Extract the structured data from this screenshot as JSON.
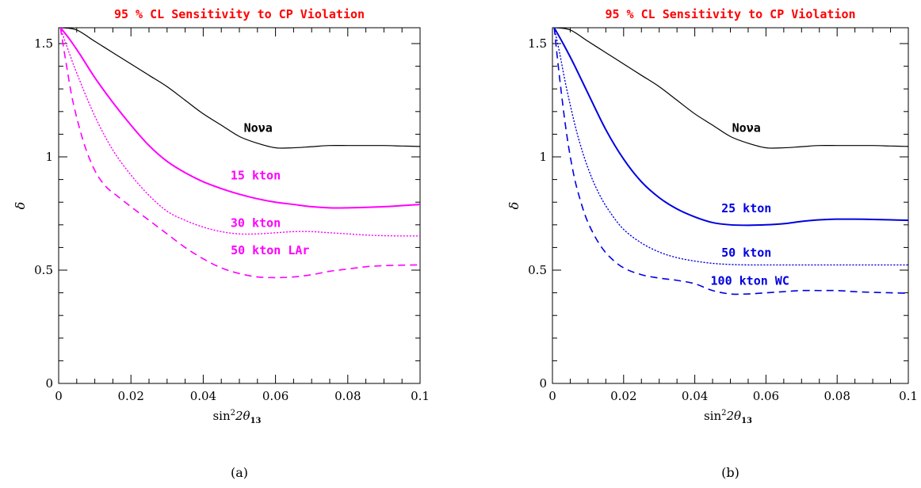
{
  "chart_data": [
    {
      "type": "line",
      "title": "95 % CL Sensitivity to CP Violation",
      "title_color": "#ff0000",
      "xlabel_text": "sin",
      "xlabel_sup": "2",
      "xlabel_mid": "2θ",
      "xlabel_sub": "13",
      "ylabel": "δ",
      "xlim": [
        0,
        0.1
      ],
      "ylim": [
        0,
        1.57
      ],
      "x_ticks": [
        0,
        0.02,
        0.04,
        0.06,
        0.08,
        0.1
      ],
      "x_tick_labels": [
        "0",
        "0.02",
        "0.04",
        "0.06",
        "0.08",
        "0.1"
      ],
      "y_ticks": [
        0,
        0.5,
        1,
        1.5
      ],
      "y_tick_labels": [
        "0",
        "0.5",
        "1",
        "1.5"
      ],
      "panel_label": "(a)",
      "series": [
        {
          "name": "Noνa",
          "color": "#000000",
          "style": "solid",
          "width": 1.2,
          "label_pos": [
            0.0552,
            1.11
          ],
          "x": [
            0.001,
            0.005,
            0.01,
            0.015,
            0.02,
            0.025,
            0.03,
            0.035,
            0.04,
            0.045,
            0.05,
            0.055,
            0.06,
            0.065,
            0.07,
            0.075,
            0.08,
            0.085,
            0.09,
            0.095,
            0.1
          ],
          "y": [
            1.57,
            1.56,
            1.51,
            1.46,
            1.41,
            1.36,
            1.31,
            1.25,
            1.19,
            1.14,
            1.09,
            1.06,
            1.04,
            1.04,
            1.045,
            1.05,
            1.05,
            1.05,
            1.05,
            1.048,
            1.046
          ]
        },
        {
          "name": "15 kton",
          "color": "#ff00ff",
          "style": "solid",
          "width": 2,
          "label_pos": [
            0.0545,
            0.9
          ],
          "x": [
            0.0005,
            0.003,
            0.006,
            0.01,
            0.015,
            0.02,
            0.025,
            0.03,
            0.035,
            0.04,
            0.045,
            0.05,
            0.055,
            0.06,
            0.065,
            0.07,
            0.075,
            0.08,
            0.085,
            0.09,
            0.095,
            0.1
          ],
          "y": [
            1.57,
            1.52,
            1.45,
            1.35,
            1.24,
            1.14,
            1.05,
            0.98,
            0.93,
            0.89,
            0.86,
            0.835,
            0.815,
            0.8,
            0.79,
            0.78,
            0.775,
            0.775,
            0.777,
            0.78,
            0.785,
            0.79
          ]
        },
        {
          "name": "30 kton",
          "color": "#ff00ff",
          "style": "dotted",
          "width": 1.4,
          "label_pos": [
            0.0545,
            0.69
          ],
          "x": [
            0.0005,
            0.002,
            0.005,
            0.01,
            0.015,
            0.02,
            0.025,
            0.03,
            0.035,
            0.04,
            0.045,
            0.05,
            0.055,
            0.06,
            0.065,
            0.07,
            0.075,
            0.08,
            0.085,
            0.09,
            0.095,
            0.1
          ],
          "y": [
            1.57,
            1.5,
            1.37,
            1.18,
            1.03,
            0.92,
            0.83,
            0.76,
            0.72,
            0.69,
            0.67,
            0.66,
            0.66,
            0.665,
            0.67,
            0.67,
            0.665,
            0.66,
            0.655,
            0.652,
            0.651,
            0.651
          ]
        },
        {
          "name": "50 kton LAr",
          "color": "#ff00ff",
          "style": "dashed",
          "width": 1.6,
          "label_pos": [
            0.0585,
            0.57
          ],
          "x": [
            0.0005,
            0.002,
            0.004,
            0.007,
            0.01,
            0.013,
            0.016,
            0.02,
            0.025,
            0.03,
            0.035,
            0.04,
            0.045,
            0.05,
            0.055,
            0.06,
            0.065,
            0.07,
            0.075,
            0.08,
            0.085,
            0.09,
            0.095,
            0.1
          ],
          "y": [
            1.57,
            1.42,
            1.24,
            1.06,
            0.94,
            0.87,
            0.83,
            0.78,
            0.72,
            0.66,
            0.6,
            0.55,
            0.51,
            0.485,
            0.47,
            0.467,
            0.47,
            0.48,
            0.495,
            0.505,
            0.515,
            0.52,
            0.522,
            0.523
          ]
        }
      ]
    },
    {
      "type": "line",
      "title": "95 % CL Sensitivity to CP Violation",
      "title_color": "#ff0000",
      "xlabel_text": "sin",
      "xlabel_sup": "2",
      "xlabel_mid": "2θ",
      "xlabel_sub": "13",
      "ylabel": "δ",
      "xlim": [
        0,
        0.1
      ],
      "ylim": [
        0,
        1.57
      ],
      "x_ticks": [
        0,
        0.02,
        0.04,
        0.06,
        0.08,
        0.1
      ],
      "x_tick_labels": [
        "0",
        "0.02",
        "0.04",
        "0.06",
        "0.08",
        "0.1"
      ],
      "y_ticks": [
        0,
        0.5,
        1,
        1.5
      ],
      "y_tick_labels": [
        "0",
        "0.5",
        "1",
        "1.5"
      ],
      "panel_label": "(b)",
      "series": [
        {
          "name": "Noνa",
          "color": "#000000",
          "style": "solid",
          "width": 1.2,
          "label_pos": [
            0.0545,
            1.11
          ],
          "x": [
            0.001,
            0.005,
            0.01,
            0.015,
            0.02,
            0.025,
            0.03,
            0.035,
            0.04,
            0.045,
            0.05,
            0.055,
            0.06,
            0.065,
            0.07,
            0.075,
            0.08,
            0.085,
            0.09,
            0.095,
            0.1
          ],
          "y": [
            1.57,
            1.56,
            1.51,
            1.46,
            1.41,
            1.36,
            1.31,
            1.25,
            1.19,
            1.14,
            1.09,
            1.06,
            1.04,
            1.04,
            1.045,
            1.05,
            1.05,
            1.05,
            1.05,
            1.048,
            1.046
          ]
        },
        {
          "name": "25 kton",
          "color": "#0000e0",
          "style": "solid",
          "width": 2,
          "label_pos": [
            0.0545,
            0.755
          ],
          "x": [
            0.0005,
            0.003,
            0.006,
            0.01,
            0.015,
            0.02,
            0.025,
            0.03,
            0.035,
            0.04,
            0.045,
            0.05,
            0.055,
            0.06,
            0.065,
            0.07,
            0.075,
            0.08,
            0.085,
            0.09,
            0.095,
            0.1
          ],
          "y": [
            1.57,
            1.5,
            1.41,
            1.28,
            1.12,
            0.99,
            0.89,
            0.82,
            0.77,
            0.735,
            0.71,
            0.7,
            0.698,
            0.7,
            0.705,
            0.715,
            0.722,
            0.725,
            0.725,
            0.724,
            0.722,
            0.72
          ]
        },
        {
          "name": "50 kton",
          "color": "#0000e0",
          "style": "dotted",
          "width": 1.4,
          "label_pos": [
            0.0545,
            0.56
          ],
          "x": [
            0.0005,
            0.002,
            0.004,
            0.007,
            0.01,
            0.013,
            0.016,
            0.02,
            0.025,
            0.03,
            0.035,
            0.04,
            0.045,
            0.05,
            0.055,
            0.06,
            0.065,
            0.07,
            0.075,
            0.08,
            0.085,
            0.09,
            0.095,
            0.1
          ],
          "y": [
            1.57,
            1.46,
            1.3,
            1.1,
            0.95,
            0.84,
            0.76,
            0.68,
            0.62,
            0.58,
            0.555,
            0.54,
            0.53,
            0.525,
            0.523,
            0.523,
            0.523,
            0.523,
            0.523,
            0.523,
            0.523,
            0.523,
            0.523,
            0.523
          ]
        },
        {
          "name": "100 kton WC",
          "color": "#0000e0",
          "style": "dashed",
          "width": 1.6,
          "label_pos": [
            0.0555,
            0.435
          ],
          "x": [
            0.0005,
            0.002,
            0.004,
            0.006,
            0.008,
            0.01,
            0.013,
            0.016,
            0.02,
            0.025,
            0.03,
            0.035,
            0.04,
            0.045,
            0.05,
            0.055,
            0.06,
            0.065,
            0.07,
            0.075,
            0.08,
            0.085,
            0.09,
            0.095,
            0.1
          ],
          "y": [
            1.57,
            1.35,
            1.1,
            0.92,
            0.8,
            0.71,
            0.62,
            0.56,
            0.51,
            0.48,
            0.465,
            0.455,
            0.44,
            0.41,
            0.395,
            0.395,
            0.4,
            0.405,
            0.41,
            0.41,
            0.41,
            0.405,
            0.402,
            0.4,
            0.398
          ]
        }
      ]
    }
  ]
}
